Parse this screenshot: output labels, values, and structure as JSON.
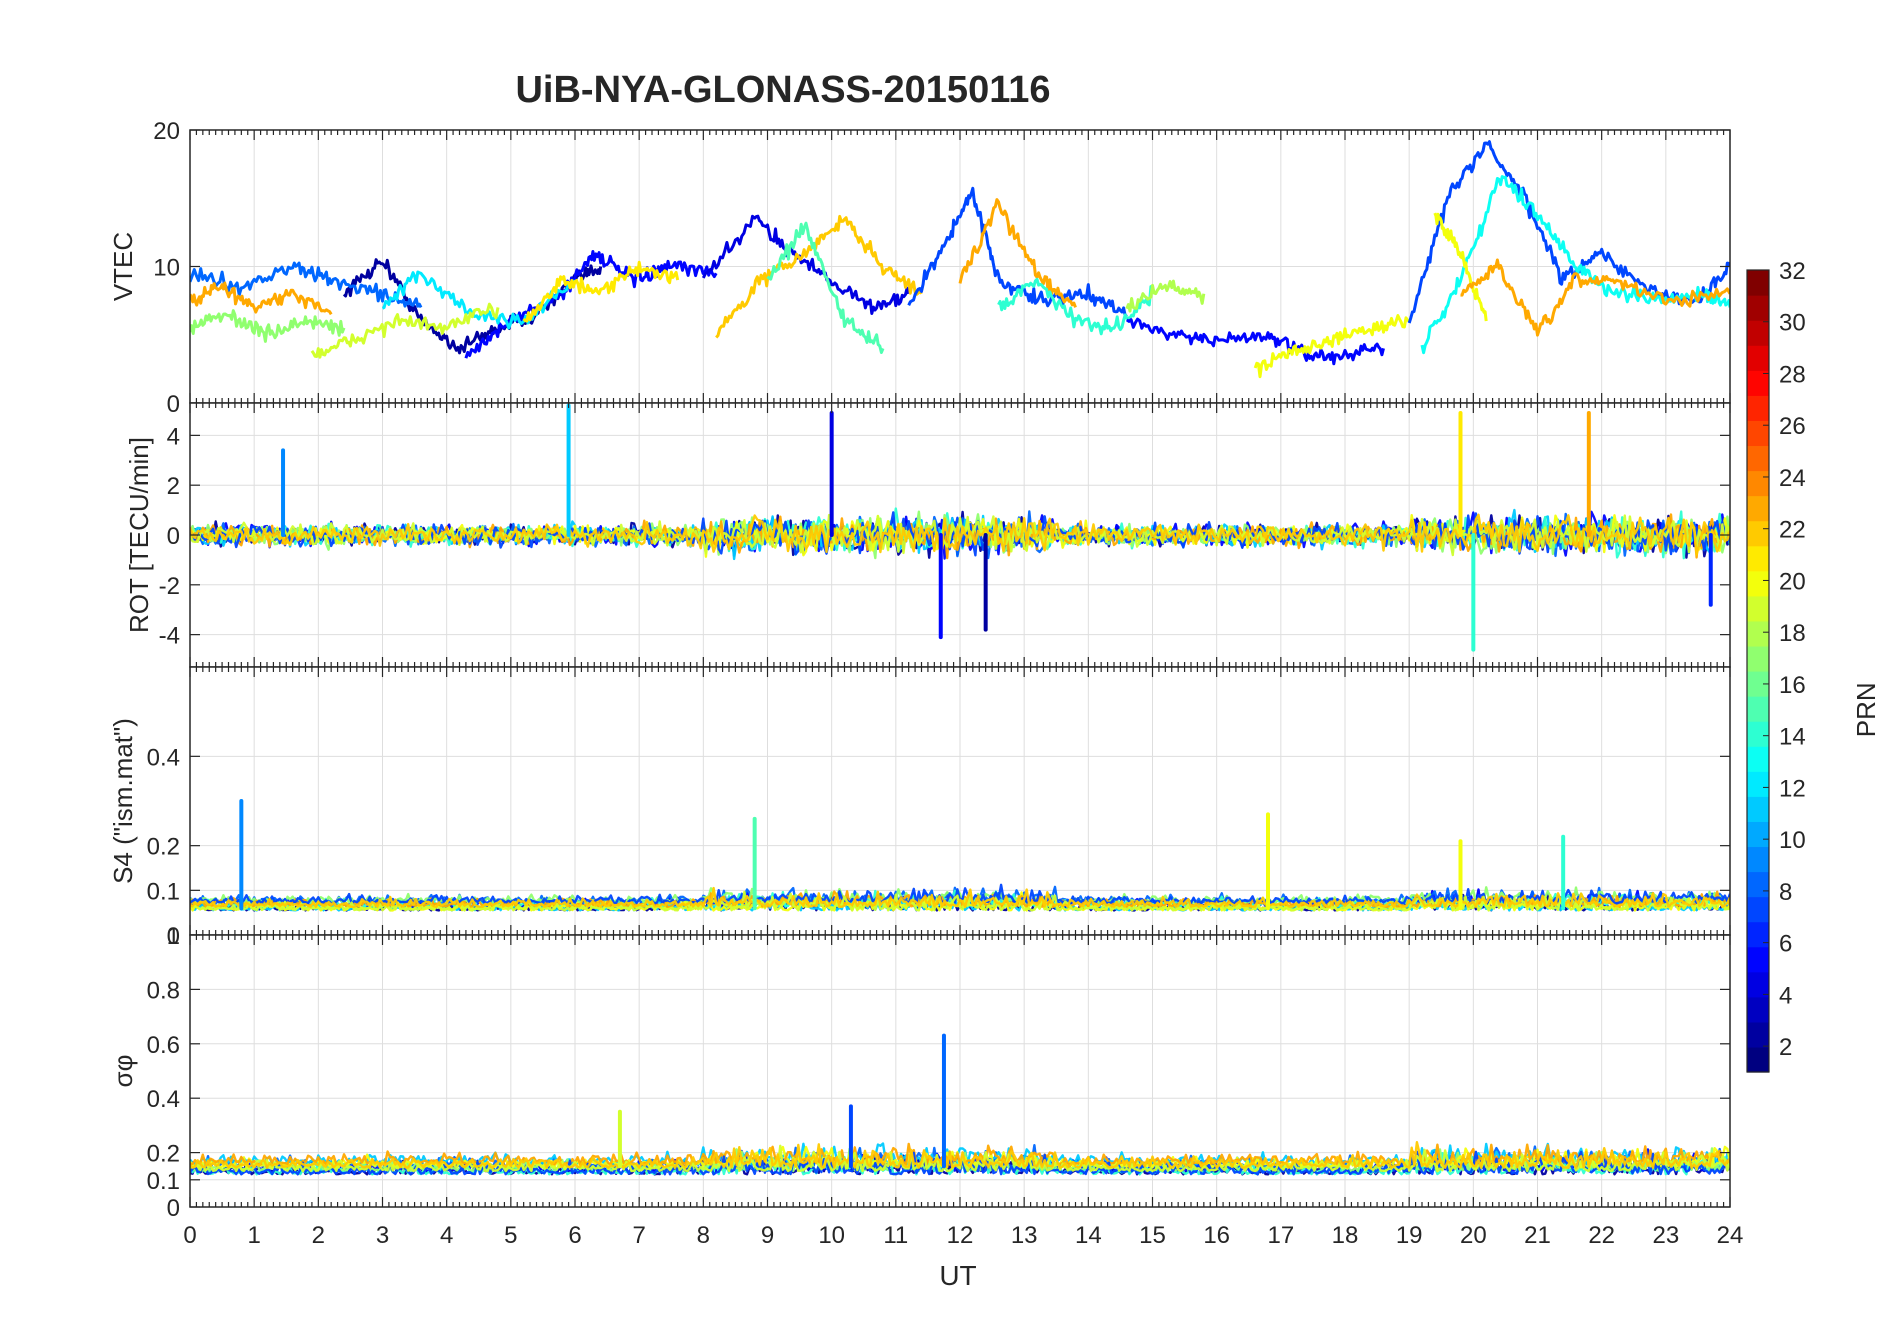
{
  "figure_title": "UiB-NYA-GLONASS-20150116",
  "xlabel": "UT",
  "xticks": [
    "0",
    "1",
    "2",
    "3",
    "4",
    "5",
    "6",
    "7",
    "8",
    "9",
    "10",
    "11",
    "12",
    "13",
    "14",
    "15",
    "16",
    "17",
    "18",
    "19",
    "20",
    "21",
    "22",
    "23",
    "24"
  ],
  "colorbar": {
    "label": "PRN",
    "range": [
      1,
      32
    ],
    "ticks": [
      "2",
      "4",
      "6",
      "8",
      "10",
      "12",
      "14",
      "16",
      "18",
      "20",
      "22",
      "24",
      "26",
      "28",
      "30",
      "32"
    ],
    "colormap": "jet",
    "anchor_colors": [
      "#00007f",
      "#0000ff",
      "#007fff",
      "#00ffff",
      "#7fff7f",
      "#ffff00",
      "#ff7f00",
      "#ff0000",
      "#7f0000"
    ]
  },
  "chart_data": [
    {
      "type": "line",
      "panel": "vtec",
      "ylabel": "VTEC",
      "ylim": [
        0,
        20
      ],
      "yticks": [
        "0",
        "10",
        "20"
      ],
      "xlim": [
        0,
        24
      ],
      "grid": true,
      "series_note": "one colored trace per GLONASS PRN (colour = PRN, see colorbar)",
      "traces": [
        {
          "prn": 2,
          "x": [
            2.4,
            3.0,
            3.6,
            4.2,
            4.8,
            5.4,
            6.0,
            6.4
          ],
          "y": [
            8.0,
            10.5,
            6.0,
            4.0,
            5.5,
            6.5,
            9.0,
            10.0
          ]
        },
        {
          "prn": 5,
          "x": [
            4.3,
            5.0,
            5.8,
            6.3,
            6.9,
            7.5,
            8.2
          ],
          "y": [
            3.5,
            6.0,
            8.0,
            11.0,
            9.0,
            10.0,
            9.5
          ]
        },
        {
          "prn": 8,
          "x": [
            0.0,
            0.8,
            1.6,
            2.2,
            3.0,
            3.6
          ],
          "y": [
            9.5,
            8.5,
            10.0,
            9.0,
            8.0,
            7.0
          ]
        },
        {
          "prn": 12,
          "x": [
            3.0,
            3.6,
            4.4,
            5.2,
            6.0
          ],
          "y": [
            7.0,
            9.5,
            6.5,
            6.0,
            9.0
          ]
        },
        {
          "prn": 17,
          "x": [
            0.0,
            0.6,
            1.2,
            1.8,
            2.4
          ],
          "y": [
            5.5,
            6.5,
            5.0,
            6.0,
            5.5
          ]
        },
        {
          "prn": 19,
          "x": [
            1.9,
            2.5,
            3.2,
            4.0,
            4.8
          ],
          "y": [
            3.5,
            4.5,
            6.0,
            5.5,
            7.0
          ]
        },
        {
          "prn": 21,
          "x": [
            5.2,
            5.8,
            6.4,
            7.0,
            7.6
          ],
          "y": [
            6.0,
            9.0,
            8.0,
            10.0,
            9.0
          ]
        },
        {
          "prn": 23,
          "x": [
            0.0,
            0.5,
            1.0,
            1.6,
            2.2
          ],
          "y": [
            7.5,
            8.5,
            7.0,
            8.0,
            6.5
          ]
        },
        {
          "prn": 4,
          "x": [
            8.0,
            8.8,
            9.4,
            10.0,
            10.6,
            11.2
          ],
          "y": [
            9.0,
            13.5,
            11.0,
            9.0,
            7.0,
            8.0
          ]
        },
        {
          "prn": 22,
          "x": [
            8.2,
            8.9,
            9.6,
            10.2,
            10.8,
            11.4
          ],
          "y": [
            5.0,
            9.0,
            11.0,
            13.5,
            10.0,
            8.0
          ]
        },
        {
          "prn": 15,
          "x": [
            9.0,
            9.6,
            10.2,
            10.8
          ],
          "y": [
            9.0,
            13.0,
            6.0,
            4.0
          ]
        },
        {
          "prn": 7,
          "x": [
            11.2,
            11.8,
            12.2,
            12.6,
            13.2,
            14.0,
            14.6
          ],
          "y": [
            7.0,
            12.0,
            15.5,
            9.0,
            7.5,
            8.0,
            6.5
          ]
        },
        {
          "prn": 23,
          "x": [
            12.0,
            12.6,
            13.2,
            13.8
          ],
          "y": [
            9.0,
            14.5,
            9.5,
            7.0
          ]
        },
        {
          "prn": 14,
          "x": [
            12.6,
            13.2,
            13.8,
            14.4,
            15.0
          ],
          "y": [
            7.0,
            9.0,
            6.0,
            5.5,
            8.0
          ]
        },
        {
          "prn": 18,
          "x": [
            14.6,
            15.2,
            15.8
          ],
          "y": [
            7.0,
            8.5,
            8.0
          ]
        },
        {
          "prn": 5,
          "x": [
            14.6,
            15.4,
            16.0,
            16.8,
            17.4,
            18.0,
            18.6
          ],
          "y": [
            6.0,
            5.0,
            4.5,
            5.0,
            3.5,
            3.5,
            4.0
          ]
        },
        {
          "prn": 20,
          "x": [
            16.6,
            17.2,
            17.8,
            18.4,
            19.0
          ],
          "y": [
            2.5,
            4.0,
            4.5,
            5.5,
            6.0
          ]
        },
        {
          "prn": 7,
          "x": [
            19.0,
            19.6,
            20.2,
            20.8,
            21.4,
            22.0,
            22.8,
            23.5,
            24.0
          ],
          "y": [
            6.0,
            15.0,
            19.0,
            15.0,
            9.0,
            11.0,
            8.0,
            7.5,
            10.0
          ]
        },
        {
          "prn": 13,
          "x": [
            19.2,
            19.8,
            20.4,
            21.0,
            21.6,
            22.2,
            23.0,
            23.6,
            24.0
          ],
          "y": [
            4.0,
            9.0,
            16.5,
            14.0,
            10.0,
            8.0,
            7.5,
            8.0,
            7.0
          ]
        },
        {
          "prn": 20,
          "x": [
            19.4,
            19.8,
            20.2
          ],
          "y": [
            14.0,
            11.0,
            6.0
          ]
        },
        {
          "prn": 23,
          "x": [
            19.8,
            20.4,
            21.0,
            21.6,
            22.2,
            23.0,
            24.0
          ],
          "y": [
            8.0,
            10.0,
            5.0,
            9.0,
            9.0,
            7.5,
            8.0
          ]
        }
      ]
    },
    {
      "type": "line",
      "panel": "rot",
      "ylabel": "ROT [TECU/min]",
      "ylim": [
        -5.3,
        5.3
      ],
      "yticks": [
        "-4",
        "-2",
        "0",
        "2",
        "4"
      ],
      "xlim": [
        0,
        24
      ],
      "grid": true,
      "series_note": "dense noisy traces around 0 per PRN with visible spikes",
      "spikes": [
        {
          "x": 1.45,
          "y": 3.4,
          "prn": 9
        },
        {
          "x": 5.9,
          "y": 5.2,
          "prn": 11
        },
        {
          "x": 10.0,
          "y": 4.9,
          "prn": 4
        },
        {
          "x": 11.7,
          "y": -4.1,
          "prn": 5
        },
        {
          "x": 12.4,
          "y": -3.8,
          "prn": 2
        },
        {
          "x": 19.8,
          "y": 4.9,
          "prn": 21
        },
        {
          "x": 20.0,
          "y": -4.6,
          "prn": 14
        },
        {
          "x": 21.8,
          "y": 4.9,
          "prn": 23
        },
        {
          "x": 23.7,
          "y": -2.8,
          "prn": 6
        }
      ]
    },
    {
      "type": "line",
      "panel": "s4",
      "ylabel": "S4 (\"ism.mat\")",
      "ylim": [
        0,
        0.6
      ],
      "yticks": [
        "0",
        "0.1",
        "0.2",
        "0.4"
      ],
      "xlim": [
        0,
        24
      ],
      "grid": true,
      "series_note": "low baseline (~0.05) with occasional spikes",
      "spikes": [
        {
          "x": 0.8,
          "y": 0.3,
          "prn": 9
        },
        {
          "x": 8.8,
          "y": 0.26,
          "prn": 15
        },
        {
          "x": 16.8,
          "y": 0.27,
          "prn": 20
        },
        {
          "x": 19.8,
          "y": 0.21,
          "prn": 20
        },
        {
          "x": 21.4,
          "y": 0.22,
          "prn": 14
        }
      ]
    },
    {
      "type": "line",
      "panel": "sigma_phi",
      "ylabel": "σφ",
      "ylim": [
        0,
        1
      ],
      "yticks": [
        "0",
        "0.1",
        "0.2",
        "0.4",
        "0.6",
        "0.8",
        "1"
      ],
      "xlim": [
        0,
        24
      ],
      "grid": true,
      "series_note": "baseline ~0.1–0.2 with peak near 11.8 UT",
      "spikes": [
        {
          "x": 11.75,
          "y": 0.63,
          "prn": 8
        },
        {
          "x": 6.7,
          "y": 0.35,
          "prn": 19
        },
        {
          "x": 10.3,
          "y": 0.37,
          "prn": 7
        }
      ]
    }
  ]
}
